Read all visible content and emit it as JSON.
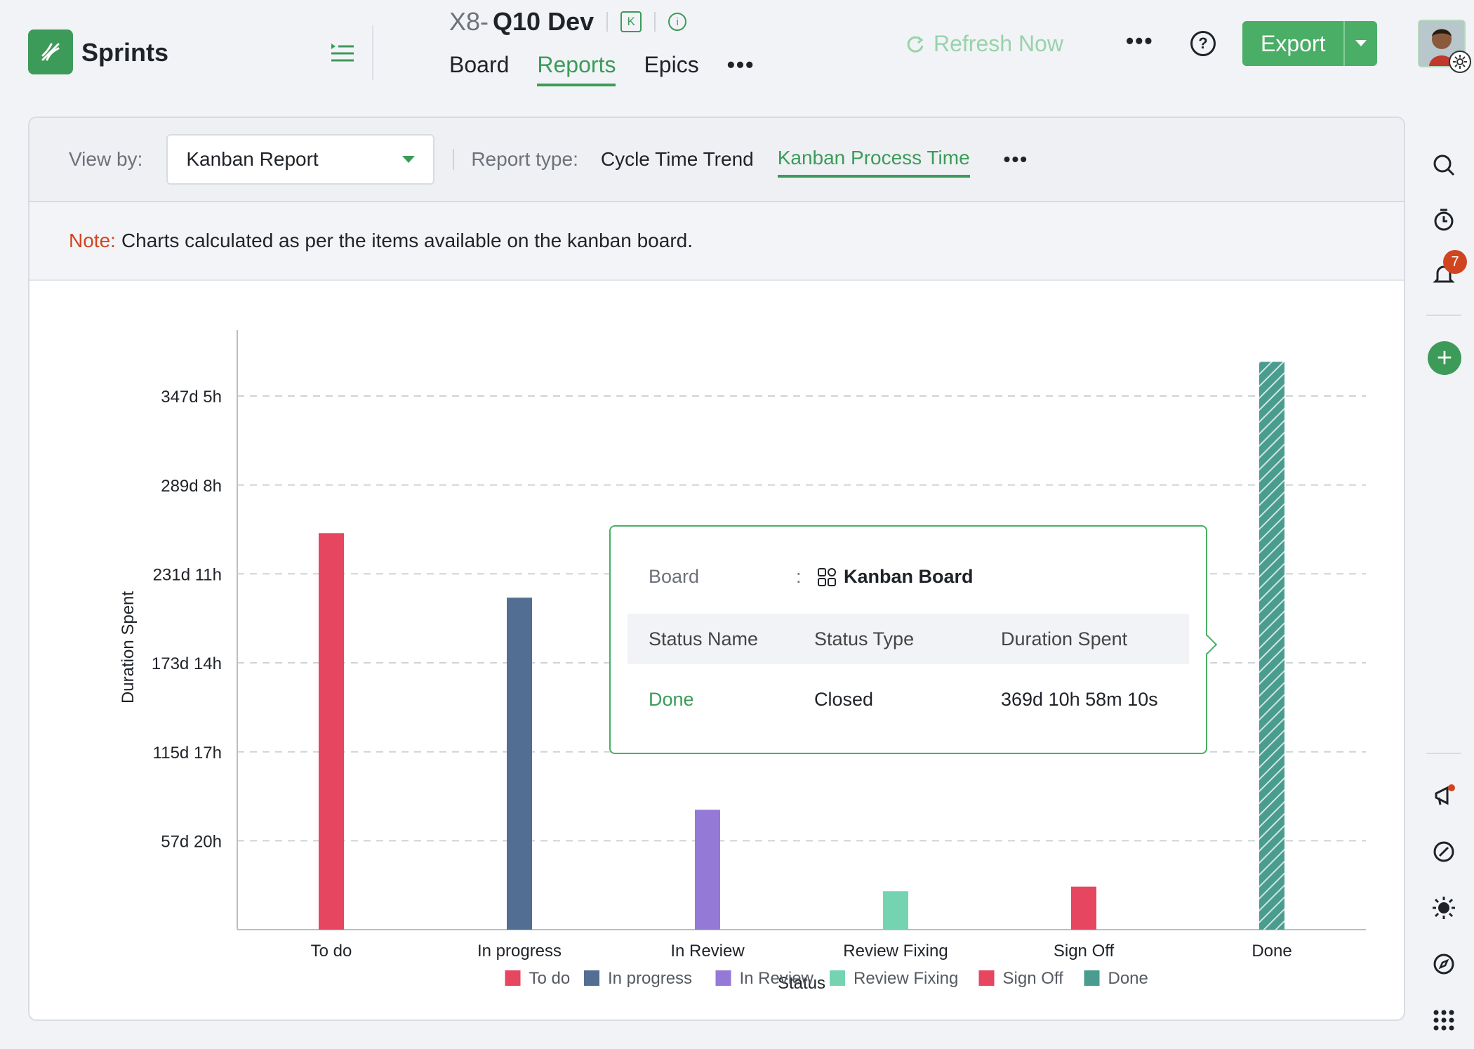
{
  "app": {
    "name": "Sprints"
  },
  "project": {
    "prefix": "X8-",
    "name": "Q10 Dev",
    "badge": "K",
    "info": "i"
  },
  "nav": {
    "tabs": [
      {
        "label": "Board"
      },
      {
        "label": "Reports"
      },
      {
        "label": "Epics"
      }
    ],
    "more": "•••",
    "active": "Reports"
  },
  "toolbar": {
    "refresh_label": "Refresh Now",
    "more": "•••",
    "help": "?",
    "export_label": "Export"
  },
  "filters": {
    "view_by_label": "View by:",
    "view_by_value": "Kanban Report",
    "report_type_label": "Report type:",
    "report_types": [
      {
        "label": "Cycle Time Trend"
      },
      {
        "label": "Kanban Process Time"
      }
    ],
    "active_report_type": "Kanban Process Time",
    "more": "•••"
  },
  "note": {
    "label": "Note:",
    "text": "Charts calculated as per the items available on the kanban board."
  },
  "tooltip": {
    "board_label": "Board",
    "colon": ":",
    "board_value": "Kanban Board",
    "headers": {
      "status_name": "Status Name",
      "status_type": "Status Type",
      "duration_spent": "Duration Spent"
    },
    "row": {
      "status_name": "Done",
      "status_type": "Closed",
      "duration_spent": "369d 10h 58m 10s"
    }
  },
  "rail": {
    "notification_count": "7",
    "add": "+"
  },
  "colors": {
    "accent": "#3c9b58",
    "note": "#d0451f"
  },
  "chart_data": {
    "type": "bar",
    "xlabel": "Status",
    "ylabel": "Duration Spent",
    "categories": [
      "To do",
      "In progress",
      "In Review",
      "Review Fixing",
      "Sign Off",
      "Done"
    ],
    "values_days": [
      258,
      216,
      78,
      25,
      28,
      369.5
    ],
    "colors": [
      "#e6465f",
      "#526e93",
      "#9479d7",
      "#74d3b1",
      "#e6465f",
      "#4a9c8e"
    ],
    "hatched": [
      false,
      false,
      false,
      false,
      false,
      true
    ],
    "y_ticks_days": [
      57.83,
      115.7,
      173.6,
      231.5,
      289.3,
      347.2
    ],
    "y_tick_labels": [
      "57d 20h",
      "115d 17h",
      "173d 14h",
      "231d 11h",
      "289d 8h",
      "347d 5h"
    ],
    "ylim_days": [
      0,
      385.6
    ],
    "legend": [
      "To do",
      "In progress",
      "In Review",
      "Review Fixing",
      "Sign Off",
      "Done"
    ],
    "legend_position": "bottom-center",
    "grid": true
  }
}
